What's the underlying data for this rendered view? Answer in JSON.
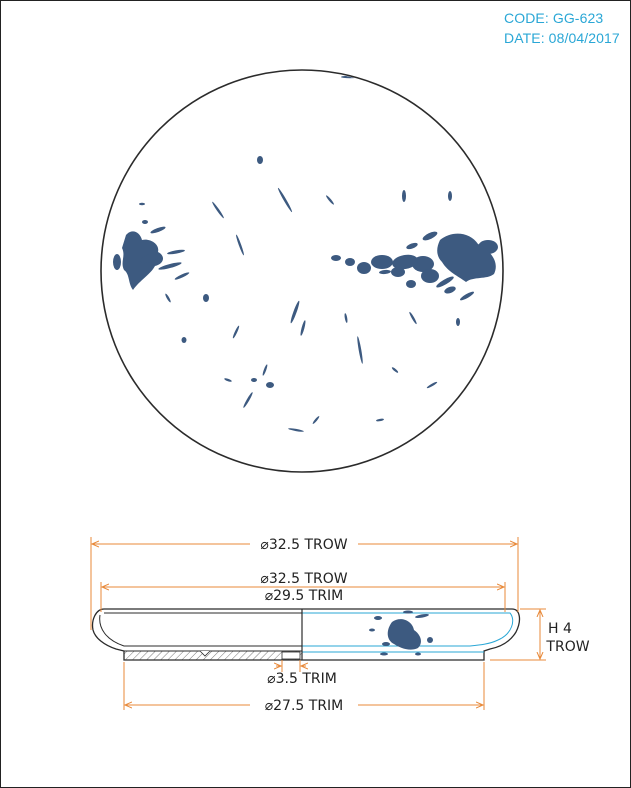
{
  "meta": {
    "code": "CODE: GG-623",
    "date": "DATE: 08/04/2017"
  },
  "dimensions": {
    "overall_trow": "⌀32.5 TROW",
    "rim_trow": "⌀32.5 TROW",
    "rim_trim": "⌀29.5 TRIM",
    "height_label": "H 4",
    "height_unit": "TROW",
    "foot_trim": "⌀3.5 TRIM",
    "base_trim": "⌀27.5 TRIM"
  },
  "colors": {
    "outline": "#2b2b2b",
    "splatter": "#3d5a80",
    "dimension": "#e8893a",
    "meta_text": "#2aa7d6",
    "cross_line": "#2aa7d6"
  }
}
